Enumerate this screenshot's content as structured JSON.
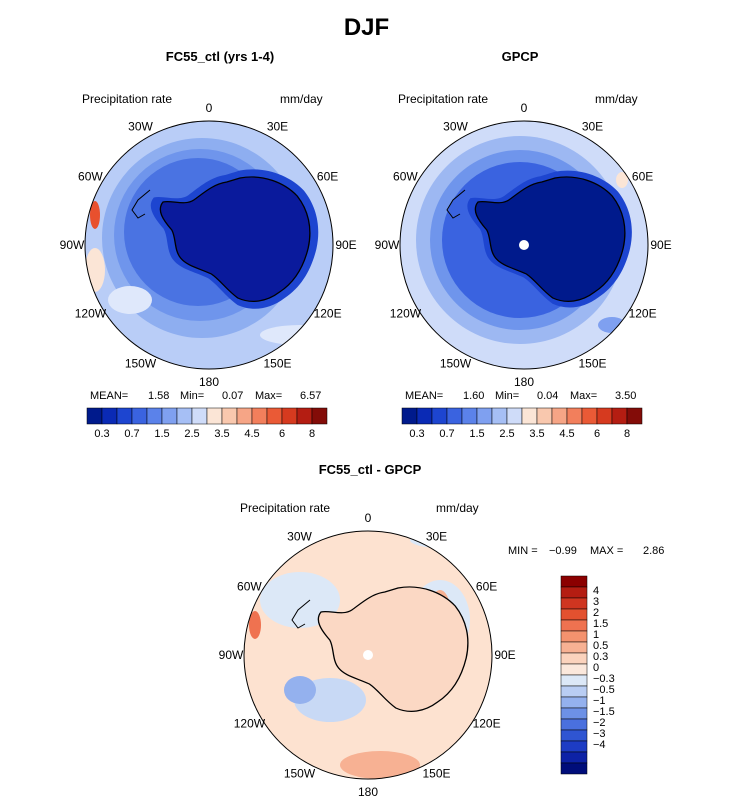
{
  "figure_title": "DJF",
  "colors": {
    "ocean_low": "#2a5ad6",
    "ocean_mid": "#6f95ec",
    "ocean_light": "#b9cdf7",
    "deep": "#001aa8",
    "diff_bg": "#fde2d0",
    "coast": "#000000"
  },
  "panels": [
    {
      "title": "FC55_ctl (yrs 1-4)",
      "variable": "Precipitation rate",
      "units": "mm/day",
      "stats": {
        "mean_label": "MEAN=",
        "mean": "1.58",
        "min_label": "Min=",
        "min": "0.07",
        "max_label": "Max=",
        "max": "6.57"
      }
    },
    {
      "title": "GPCP",
      "variable": "Precipitation rate",
      "units": "mm/day",
      "stats": {
        "mean_label": "MEAN=",
        "mean": "1.60",
        "min_label": "Min=",
        "min": "0.04",
        "max_label": "Max=",
        "max": "3.50"
      }
    },
    {
      "title": "FC55_ctl - GPCP",
      "variable": "Precipitation rate",
      "units": "mm/day",
      "stats": {
        "min_label": "MIN =",
        "min": "−0.99",
        "max_label": "MAX =",
        "max": "2.86"
      }
    }
  ],
  "longitude_labels": [
    "0",
    "30E",
    "60E",
    "90E",
    "120E",
    "150E",
    "180",
    "150W",
    "120W",
    "90W",
    "60W",
    "30W"
  ],
  "colorbar_horizontal": {
    "colors": [
      "#001a8c",
      "#0a2ab5",
      "#1d45d0",
      "#3a63e0",
      "#5b82ea",
      "#7fa0f0",
      "#a6bff5",
      "#cfdcf9",
      "#fbe5d6",
      "#f9c8ae",
      "#f6a586",
      "#f27f5c",
      "#ea5a36",
      "#d63a1f",
      "#b41d12",
      "#830c08"
    ],
    "tick_labels": [
      "0.3",
      "0.7",
      "1.5",
      "2.5",
      "3.5",
      "4.5",
      "6",
      "8"
    ]
  },
  "colorbar_vertical": {
    "colors": [
      "#8b0000",
      "#b41d12",
      "#cf3520",
      "#e3512f",
      "#ef7250",
      "#f4926e",
      "#f7b193",
      "#fbd3bd",
      "#fbe8dc",
      "#dce8f7",
      "#b9cdf3",
      "#94b1ee",
      "#6d91e6",
      "#4a70de",
      "#2f55d2",
      "#1d3cc4",
      "#0d22a6",
      "#000d7a"
    ],
    "tick_labels": [
      "4",
      "3",
      "2",
      "1.5",
      "1",
      "0.5",
      "0.3",
      "0",
      "−0.3",
      "−0.5",
      "−1",
      "−1.5",
      "−2",
      "−3",
      "−4"
    ]
  }
}
